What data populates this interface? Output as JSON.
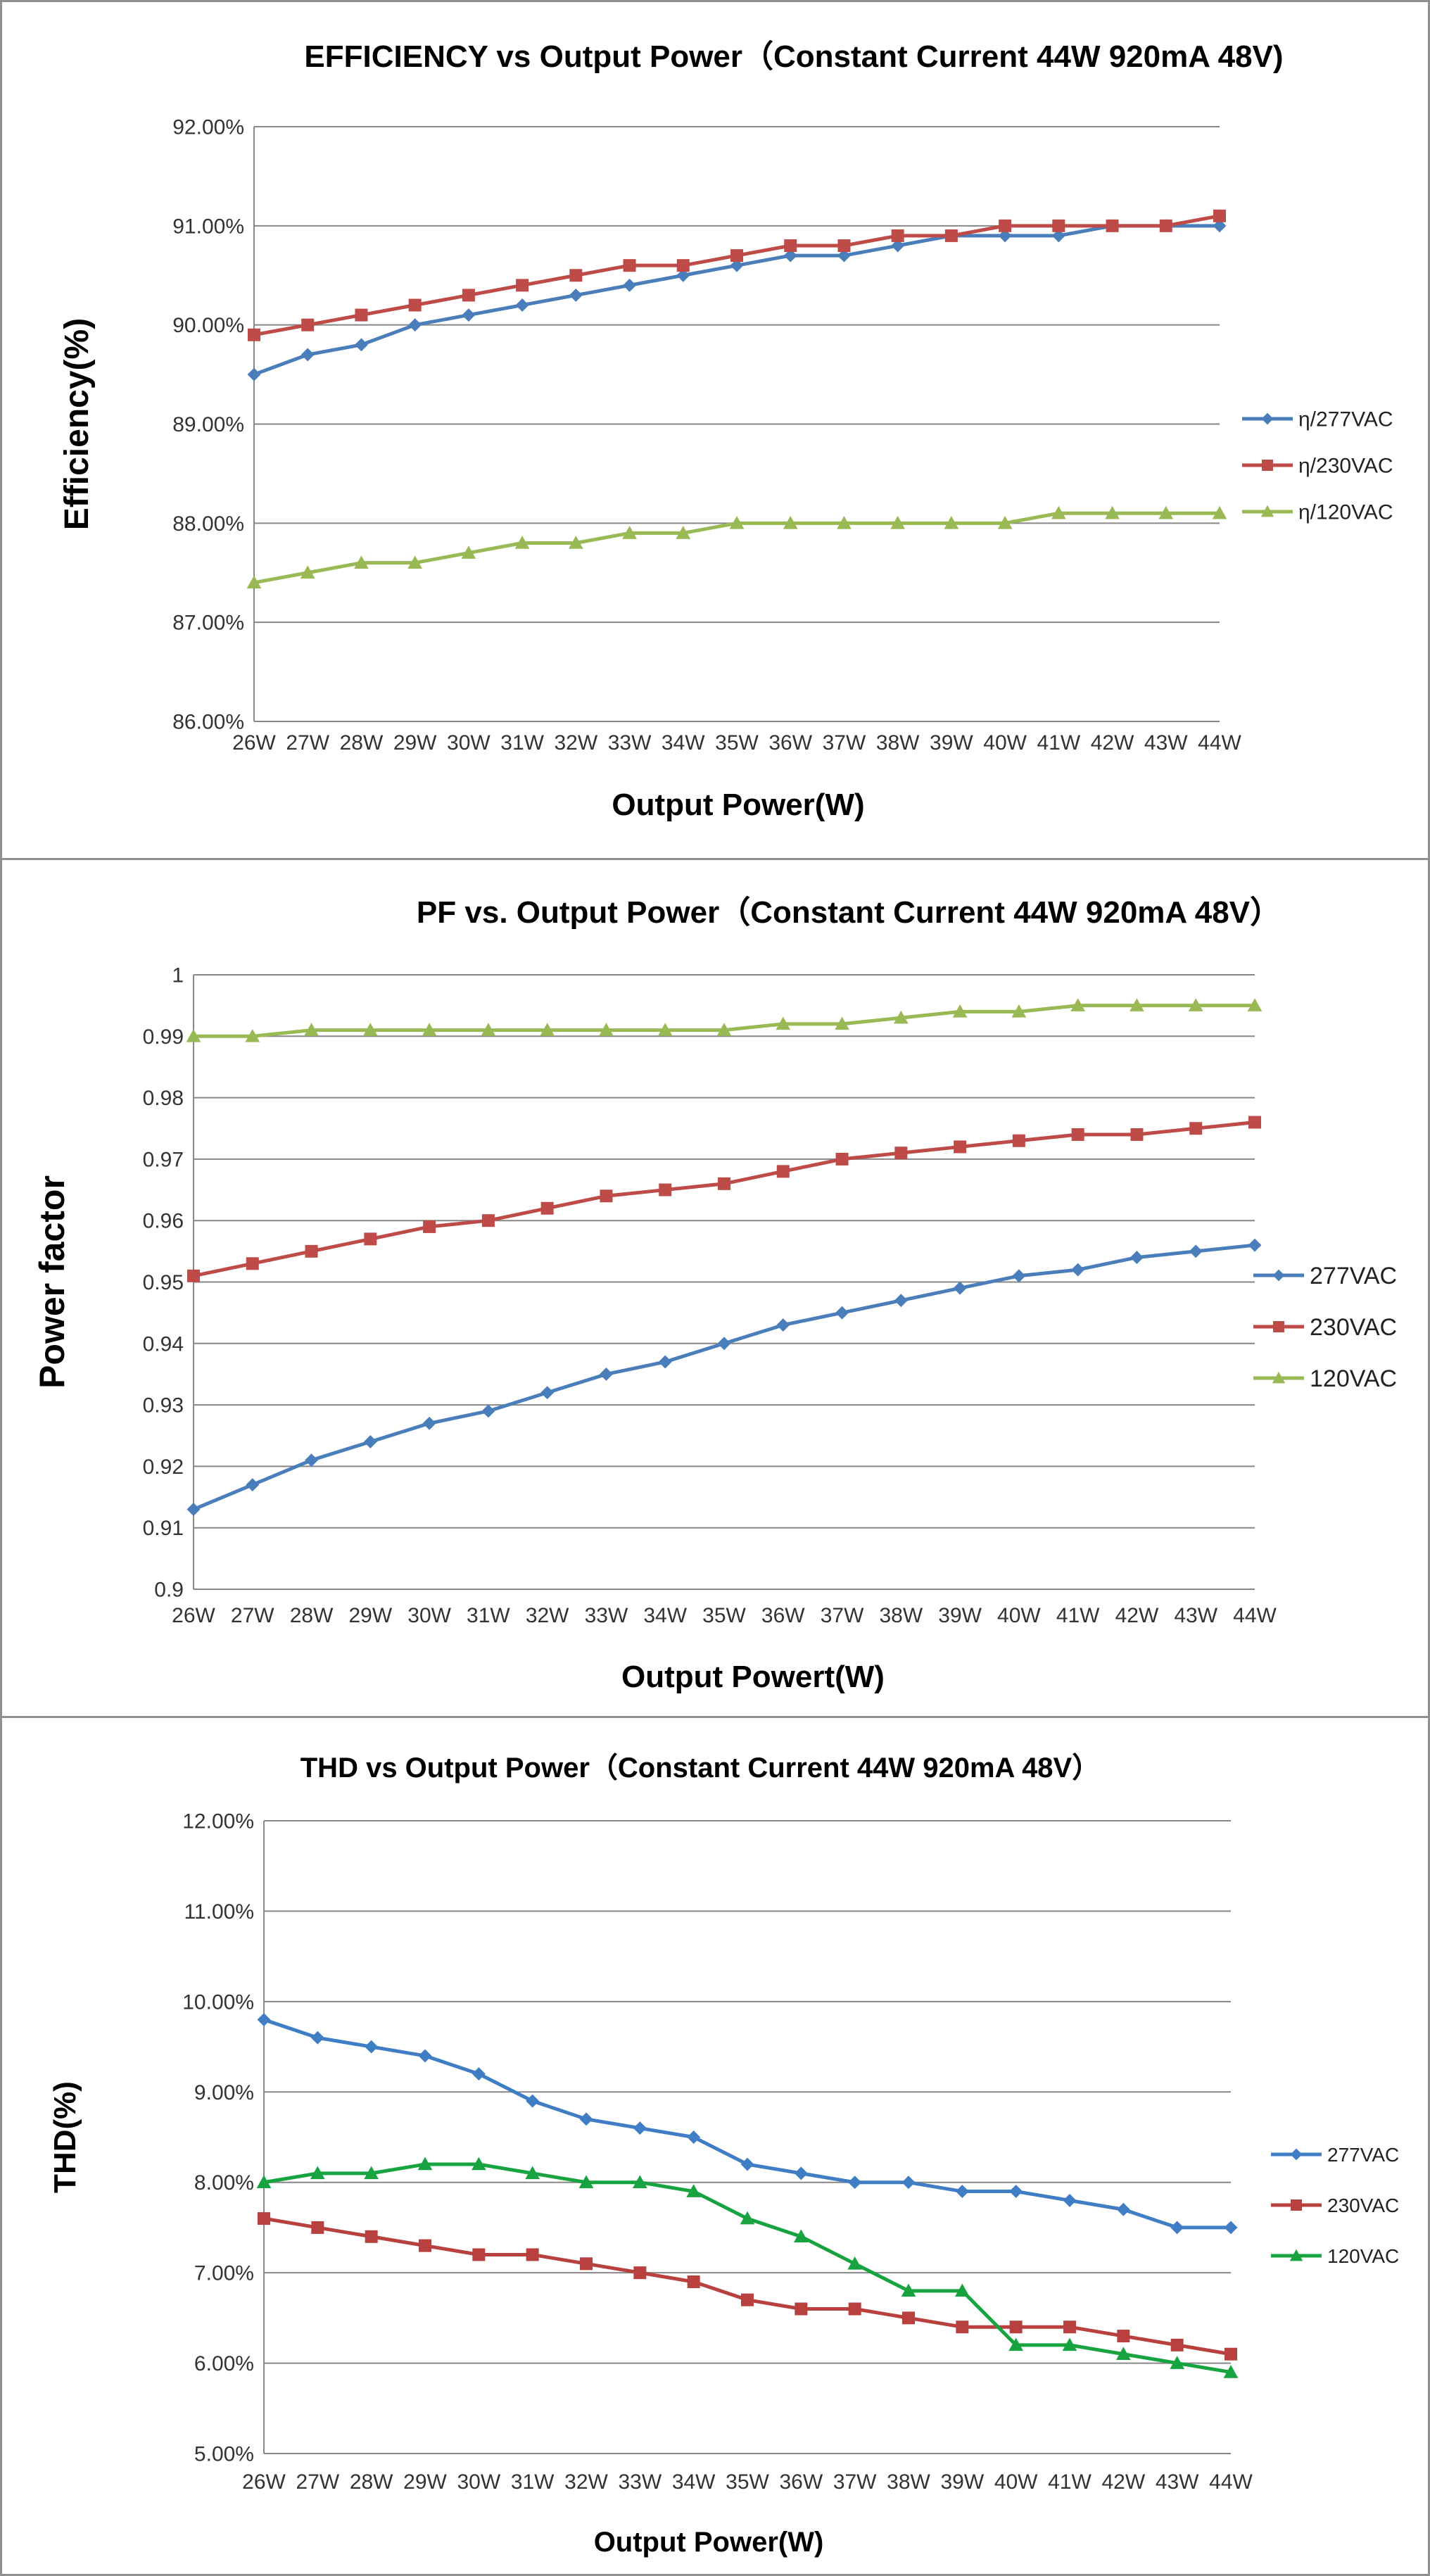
{
  "chart_data": [
    {
      "type": "line",
      "title": "EFFICIENCY vs Output Power（Constant Current 44W 920mA 48V)",
      "xlabel": "Output Power(W)",
      "ylabel": "Efficiency(%)",
      "categories": [
        "26W",
        "27W",
        "28W",
        "29W",
        "30W",
        "31W",
        "32W",
        "33W",
        "34W",
        "35W",
        "36W",
        "37W",
        "38W",
        "39W",
        "40W",
        "41W",
        "42W",
        "43W",
        "44W"
      ],
      "ylim": [
        86,
        92
      ],
      "yticks": [
        "86.00%",
        "87.00%",
        "88.00%",
        "89.00%",
        "90.00%",
        "91.00%",
        "92.00%"
      ],
      "grid": true,
      "legend_position": "right",
      "series": [
        {
          "name": "η/277VAC",
          "color": "#4a7ebb",
          "marker": "diamond",
          "values": [
            89.5,
            89.7,
            89.8,
            90.0,
            90.1,
            90.2,
            90.3,
            90.4,
            90.5,
            90.6,
            90.7,
            90.7,
            90.8,
            90.9,
            90.9,
            90.9,
            91.0,
            91.0,
            91.0
          ]
        },
        {
          "name": "η/230VAC",
          "color": "#be4b48",
          "marker": "square",
          "values": [
            89.9,
            90.0,
            90.1,
            90.2,
            90.3,
            90.4,
            90.5,
            90.6,
            90.6,
            90.7,
            90.8,
            90.8,
            90.9,
            90.9,
            91.0,
            91.0,
            91.0,
            91.0,
            91.1
          ]
        },
        {
          "name": "η/120VAC",
          "color": "#98b954",
          "marker": "triangle",
          "values": [
            87.4,
            87.5,
            87.6,
            87.6,
            87.7,
            87.8,
            87.8,
            87.9,
            87.9,
            88.0,
            88.0,
            88.0,
            88.0,
            88.0,
            88.0,
            88.1,
            88.1,
            88.1,
            88.1
          ]
        }
      ]
    },
    {
      "type": "line",
      "title": "PF vs. Output Power（Constant Current 44W 920mA 48V）",
      "xlabel": "Output Powert(W)",
      "ylabel": "Power factor",
      "categories": [
        "26W",
        "27W",
        "28W",
        "29W",
        "30W",
        "31W",
        "32W",
        "33W",
        "34W",
        "35W",
        "36W",
        "37W",
        "38W",
        "39W",
        "40W",
        "41W",
        "42W",
        "43W",
        "44W"
      ],
      "ylim": [
        0.9,
        1.0
      ],
      "yticks": [
        "0.9",
        "0.91",
        "0.92",
        "0.93",
        "0.94",
        "0.95",
        "0.96",
        "0.97",
        "0.98",
        "0.99",
        "1"
      ],
      "grid": true,
      "legend_position": "right",
      "series": [
        {
          "name": "277VAC",
          "color": "#4a7ebb",
          "marker": "diamond",
          "values": [
            0.913,
            0.917,
            0.921,
            0.924,
            0.927,
            0.929,
            0.932,
            0.935,
            0.937,
            0.94,
            0.943,
            0.945,
            0.947,
            0.949,
            0.951,
            0.952,
            0.954,
            0.955,
            0.956
          ]
        },
        {
          "name": "230VAC",
          "color": "#be4b48",
          "marker": "square",
          "values": [
            0.951,
            0.953,
            0.955,
            0.957,
            0.959,
            0.96,
            0.962,
            0.964,
            0.965,
            0.966,
            0.968,
            0.97,
            0.971,
            0.972,
            0.973,
            0.974,
            0.974,
            0.975,
            0.976
          ]
        },
        {
          "name": "120VAC",
          "color": "#98b954",
          "marker": "triangle",
          "values": [
            0.99,
            0.99,
            0.991,
            0.991,
            0.991,
            0.991,
            0.991,
            0.991,
            0.991,
            0.991,
            0.992,
            0.992,
            0.993,
            0.994,
            0.994,
            0.995,
            0.995,
            0.995,
            0.995
          ]
        }
      ]
    },
    {
      "type": "line",
      "title": "THD vs Output Power（Constant Current 44W  920mA 48V）",
      "xlabel": "Output Power(W)",
      "ylabel": "THD(%)",
      "categories": [
        "26W",
        "27W",
        "28W",
        "29W",
        "30W",
        "31W",
        "32W",
        "33W",
        "34W",
        "35W",
        "36W",
        "37W",
        "38W",
        "39W",
        "40W",
        "41W",
        "42W",
        "43W",
        "44W"
      ],
      "ylim": [
        5,
        12
      ],
      "yticks": [
        "5.00%",
        "6.00%",
        "7.00%",
        "8.00%",
        "9.00%",
        "10.00%",
        "11.00%",
        "12.00%"
      ],
      "grid": true,
      "legend_position": "right",
      "series": [
        {
          "name": "277VAC",
          "color": "#3f7dc4",
          "marker": "diamond",
          "values": [
            9.8,
            9.6,
            9.5,
            9.4,
            9.2,
            8.9,
            8.7,
            8.6,
            8.5,
            8.2,
            8.1,
            8.0,
            8.0,
            7.9,
            7.9,
            7.8,
            7.7,
            7.5,
            7.5
          ]
        },
        {
          "name": "230VAC",
          "color": "#b8413f",
          "marker": "square",
          "values": [
            7.6,
            7.5,
            7.4,
            7.3,
            7.2,
            7.2,
            7.1,
            7.0,
            6.9,
            6.7,
            6.6,
            6.6,
            6.5,
            6.4,
            6.4,
            6.4,
            6.3,
            6.2,
            6.1
          ]
        },
        {
          "name": "120VAC",
          "color": "#17a340",
          "marker": "triangle",
          "values": [
            8.0,
            8.1,
            8.1,
            8.2,
            8.2,
            8.1,
            8.0,
            8.0,
            7.9,
            7.6,
            7.4,
            7.1,
            6.8,
            6.8,
            6.2,
            6.2,
            6.1,
            6.0,
            5.9
          ]
        }
      ]
    }
  ]
}
